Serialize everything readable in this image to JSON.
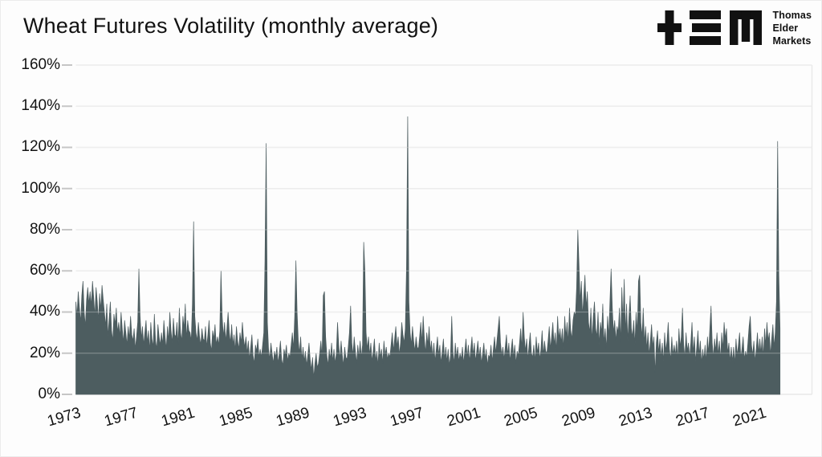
{
  "page": {
    "background": "#fdfdfd"
  },
  "header": {
    "title": "Wheat Futures Volatility (monthly average)",
    "logo": {
      "name": "Thomas Elder Markets",
      "glyphs": "TEM",
      "lines": [
        "Thomas",
        "Elder",
        "Markets"
      ]
    }
  },
  "chart_data": {
    "type": "area",
    "title": "Wheat Futures Volatility (monthly average)",
    "series_name": "Wheat futures volatility, monthly average",
    "unit": "percent",
    "x_start_year": 1973,
    "points_per_year": 12,
    "xlim": [
      1973,
      2024.6
    ],
    "ylim": [
      0,
      160
    ],
    "grid": "horizontal",
    "legend": "none",
    "y_tick_labels": [
      "160%",
      "140%",
      "120%",
      "100%",
      "80%",
      "60%",
      "40%",
      "20%",
      "0%"
    ],
    "x_tick_labels": [
      "1973",
      "1977",
      "1981",
      "1985",
      "1989",
      "1993",
      "1997",
      "2001",
      "2005",
      "2009",
      "2013",
      "2017",
      "2021"
    ],
    "notable_peaks": [
      {
        "year": 1977,
        "value": 61
      },
      {
        "year": 1981,
        "value": 84
      },
      {
        "year": 1986,
        "value": 122
      },
      {
        "year": 1993,
        "value": 74
      },
      {
        "year": 1996,
        "value": 135
      },
      {
        "year": 2008,
        "value": 80
      },
      {
        "year": 2022,
        "value": 123
      }
    ],
    "values": [
      45,
      38,
      50,
      42,
      35,
      48,
      55,
      40,
      33,
      46,
      52,
      44,
      50,
      43,
      55,
      47,
      38,
      52,
      45,
      36,
      49,
      41,
      53,
      46,
      40,
      33,
      44,
      28,
      37,
      45,
      31,
      26,
      39,
      34,
      42,
      30,
      35,
      28,
      40,
      32,
      25,
      36,
      30,
      24,
      33,
      27,
      38,
      29,
      26,
      32,
      22,
      28,
      35,
      61,
      38,
      27,
      33,
      24,
      30,
      36,
      25,
      31,
      21,
      35,
      27,
      23,
      39,
      26,
      22,
      34,
      28,
      24,
      30,
      24,
      36,
      28,
      22,
      33,
      26,
      40,
      31,
      25,
      37,
      29,
      28,
      35,
      24,
      42,
      30,
      26,
      38,
      32,
      44,
      27,
      36,
      31,
      30,
      26,
      44,
      84,
      38,
      30,
      26,
      35,
      28,
      24,
      32,
      27,
      26,
      33,
      23,
      29,
      36,
      25,
      21,
      31,
      27,
      34,
      24,
      28,
      24,
      31,
      60,
      38,
      28,
      35,
      26,
      32,
      40,
      30,
      25,
      34,
      24,
      29,
      21,
      33,
      26,
      22,
      30,
      25,
      35,
      27,
      23,
      28,
      20,
      26,
      17,
      23,
      29,
      19,
      15,
      24,
      21,
      27,
      18,
      22,
      18,
      24,
      30,
      65,
      122,
      35,
      22,
      17,
      25,
      20,
      15,
      21,
      18,
      23,
      15,
      20,
      26,
      17,
      14,
      22,
      19,
      24,
      16,
      20,
      18,
      24,
      30,
      22,
      38,
      65,
      40,
      26,
      20,
      28,
      17,
      23,
      16,
      21,
      14,
      19,
      25,
      17,
      12,
      18,
      8,
      15,
      20,
      13,
      15,
      20,
      26,
      18,
      48,
      50,
      28,
      19,
      14,
      22,
      17,
      25,
      16,
      22,
      15,
      20,
      35,
      24,
      17,
      26,
      19,
      14,
      23,
      18,
      17,
      23,
      30,
      43,
      25,
      19,
      28,
      21,
      15,
      24,
      18,
      26,
      18,
      24,
      74,
      60,
      30,
      22,
      28,
      19,
      25,
      16,
      21,
      27,
      16,
      21,
      14,
      25,
      18,
      22,
      15,
      26,
      19,
      23,
      17,
      20,
      18,
      24,
      30,
      21,
      27,
      33,
      23,
      28,
      19,
      25,
      35,
      29,
      25,
      32,
      62,
      135,
      45,
      30,
      24,
      33,
      26,
      21,
      28,
      23,
      22,
      28,
      35,
      25,
      38,
      27,
      20,
      30,
      24,
      33,
      21,
      26,
      18,
      25,
      16,
      22,
      28,
      19,
      24,
      15,
      21,
      27,
      17,
      23,
      16,
      22,
      14,
      19,
      38,
      21,
      15,
      25,
      18,
      23,
      16,
      20,
      17,
      23,
      15,
      21,
      27,
      18,
      24,
      16,
      22,
      28,
      19,
      25,
      16,
      21,
      26,
      18,
      23,
      15,
      20,
      25,
      17,
      22,
      14,
      19,
      18,
      24,
      16,
      22,
      28,
      20,
      26,
      32,
      38,
      25,
      19,
      23,
      17,
      23,
      29,
      19,
      25,
      16,
      22,
      27,
      18,
      24,
      15,
      21,
      19,
      25,
      32,
      22,
      40,
      28,
      21,
      27,
      17,
      24,
      30,
      20,
      18,
      24,
      16,
      28,
      20,
      25,
      17,
      22,
      31,
      19,
      26,
      21,
      20,
      26,
      33,
      22,
      28,
      35,
      24,
      30,
      21,
      38,
      27,
      32,
      25,
      32,
      22,
      38,
      28,
      35,
      25,
      42,
      31,
      27,
      36,
      40,
      38,
      52,
      80,
      63,
      45,
      55,
      38,
      48,
      58,
      42,
      50,
      35,
      30,
      42,
      26,
      38,
      45,
      32,
      28,
      40,
      24,
      35,
      30,
      44,
      25,
      32,
      22,
      38,
      28,
      45,
      61,
      42,
      30,
      36,
      26,
      33,
      30,
      42,
      25,
      52,
      35,
      56,
      30,
      44,
      26,
      38,
      48,
      32,
      28,
      36,
      24,
      40,
      30,
      55,
      58,
      35,
      28,
      42,
      25,
      33,
      22,
      30,
      19,
      26,
      34,
      23,
      28,
      10,
      25,
      31,
      20,
      27,
      18,
      25,
      16,
      30,
      21,
      26,
      35,
      22,
      17,
      28,
      19,
      24,
      19,
      26,
      17,
      32,
      23,
      28,
      42,
      24,
      18,
      30,
      21,
      25,
      18,
      25,
      35,
      20,
      28,
      16,
      23,
      31,
      19,
      26,
      15,
      22,
      17,
      24,
      16,
      28,
      20,
      32,
      43,
      25,
      18,
      27,
      21,
      30,
      19,
      26,
      17,
      30,
      22,
      35,
      27,
      32,
      20,
      25,
      16,
      23,
      16,
      23,
      15,
      27,
      19,
      24,
      30,
      18,
      22,
      28,
      17,
      21,
      18,
      25,
      33,
      38,
      24,
      19,
      26,
      16,
      22,
      30,
      20,
      27,
      20,
      28,
      18,
      32,
      24,
      35,
      26,
      30,
      19,
      27,
      34,
      23,
      30,
      45,
      123,
      58,
      32
    ],
    "colors": {
      "area": "#4d5d60",
      "grid": "#e8e8e8",
      "tick_mark": "#c6c6c6",
      "text": "#121212",
      "background": "#fdfdfd"
    }
  }
}
